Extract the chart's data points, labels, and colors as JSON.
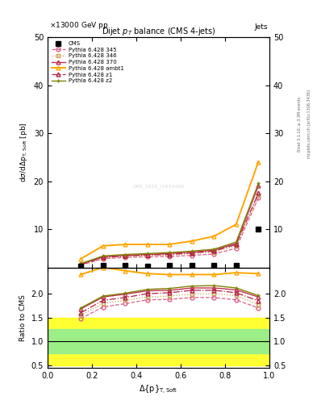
{
  "title": "Dijet $p_T$ balance (CMS 4-jets)",
  "header_left": "13000 GeV pp",
  "header_right": "Jets",
  "ylabel_main": "dσ/dΔ{rm p}_{T,Soft} [pb]",
  "ylabel_ratio": "Ratio to CMS",
  "xlabel": "Δ{rm p}_{T,Soft}",
  "x_data": [
    0.15,
    0.25,
    0.35,
    0.45,
    0.55,
    0.65,
    0.75,
    0.85,
    0.95
  ],
  "cms_data": [
    2.2,
    2.4,
    2.4,
    2.3,
    2.4,
    2.4,
    2.5,
    2.5,
    10.0
  ],
  "py_345": [
    2.5,
    3.8,
    4.1,
    4.2,
    4.3,
    4.5,
    4.8,
    6.0,
    16.5
  ],
  "py_346": [
    2.6,
    4.0,
    4.3,
    4.5,
    4.6,
    4.9,
    5.2,
    6.5,
    17.0
  ],
  "py_370": [
    2.7,
    4.2,
    4.5,
    4.7,
    4.9,
    5.2,
    5.6,
    7.0,
    19.0
  ],
  "py_ambt1": [
    3.8,
    6.5,
    6.8,
    6.8,
    6.8,
    7.5,
    8.5,
    11.0,
    24.0
  ],
  "py_z1": [
    2.6,
    4.1,
    4.4,
    4.6,
    4.7,
    5.0,
    5.4,
    6.8,
    17.5
  ],
  "py_z2": [
    2.8,
    4.4,
    4.7,
    4.9,
    5.1,
    5.4,
    5.8,
    7.3,
    19.5
  ],
  "ratio_345": [
    1.48,
    1.72,
    1.79,
    1.87,
    1.88,
    1.92,
    1.92,
    1.87,
    1.7
  ],
  "ratio_346": [
    1.55,
    1.8,
    1.86,
    1.93,
    1.95,
    1.99,
    2.0,
    1.96,
    1.77
  ],
  "ratio_370": [
    1.68,
    1.93,
    1.99,
    2.06,
    2.07,
    2.12,
    2.12,
    2.08,
    1.93
  ],
  "ratio_ambt1": [
    2.4,
    2.55,
    2.48,
    2.42,
    2.4,
    2.4,
    2.4,
    2.44,
    2.42
  ],
  "ratio_z1": [
    1.6,
    1.86,
    1.92,
    2.0,
    2.02,
    2.07,
    2.07,
    2.02,
    1.85
  ],
  "ratio_z2": [
    1.7,
    1.95,
    2.01,
    2.09,
    2.11,
    2.16,
    2.17,
    2.12,
    1.96
  ],
  "green_band_lo": 0.75,
  "green_band_hi": 1.25,
  "yellow_band_lo": 0.5,
  "yellow_band_hi": 1.5,
  "ylim_main": [
    2.0,
    50.0
  ],
  "ylim_ratio": [
    0.45,
    2.55
  ],
  "yticks_main": [
    10,
    20,
    30,
    40,
    50
  ],
  "yticks_ratio": [
    0.5,
    1.0,
    1.5,
    2.0
  ],
  "color_345": "#e0608a",
  "color_346": "#c8a050",
  "color_370": "#c03050",
  "color_ambt1": "#ffa500",
  "color_z1": "#b02040",
  "color_z2": "#808000",
  "color_cms": "#000000",
  "watermark": "CMS_2021_I1932460",
  "rivet_text": "Rivet 3.1.10, ≥ 3.3M events",
  "mcplots_text": "mcplots.cern.ch [arXiv:1306.3436]"
}
